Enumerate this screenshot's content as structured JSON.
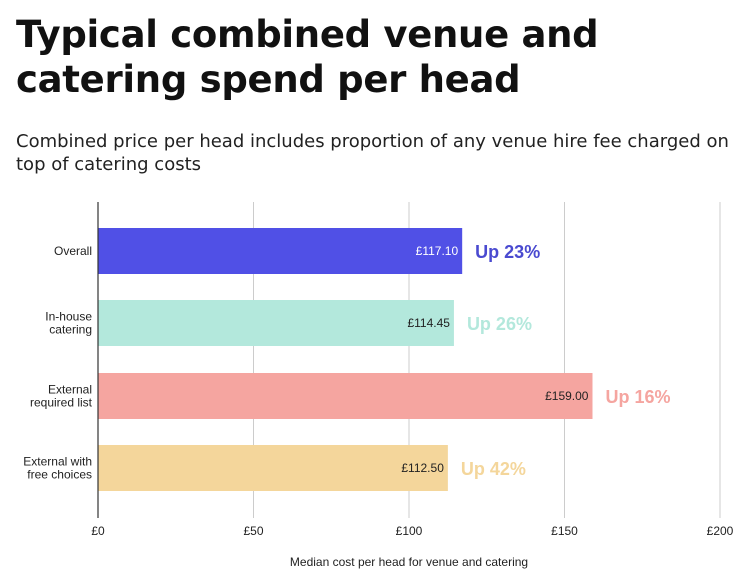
{
  "title": "Typical combined venue and catering spend per head",
  "subtitle": "Combined price per head includes proportion of any venue hire fee charged on top of catering costs",
  "chart_data": {
    "type": "bar",
    "orientation": "horizontal",
    "categories": [
      [
        "Overall"
      ],
      [
        "In-house",
        "catering"
      ],
      [
        "External",
        "required list"
      ],
      [
        "External with",
        "free choices"
      ]
    ],
    "values": [
      117.1,
      114.45,
      159.0,
      112.5
    ],
    "value_labels": [
      "£117.10",
      "£114.45",
      "£159.00",
      "£112.50"
    ],
    "change_labels": [
      "Up 23%",
      "Up 26%",
      "Up 16%",
      "Up 42%"
    ],
    "bar_colors": [
      "#5050e6",
      "#b3e8dc",
      "#f5a5a0",
      "#f4d69b"
    ],
    "change_colors": [
      "#4a4ad0",
      "#b3e8dc",
      "#f5a5a0",
      "#f4d69b"
    ],
    "value_label_colors": [
      "#ffffff",
      "#222222",
      "#222222",
      "#222222"
    ],
    "xlim": [
      0,
      200
    ],
    "xticks": [
      0,
      50,
      100,
      150,
      200
    ],
    "xtick_labels": [
      "£0",
      "£50",
      "£100",
      "£150",
      "£200"
    ],
    "xlabel": "Median cost per head for venue and catering",
    "ylabel": "",
    "grid": "vertical"
  }
}
